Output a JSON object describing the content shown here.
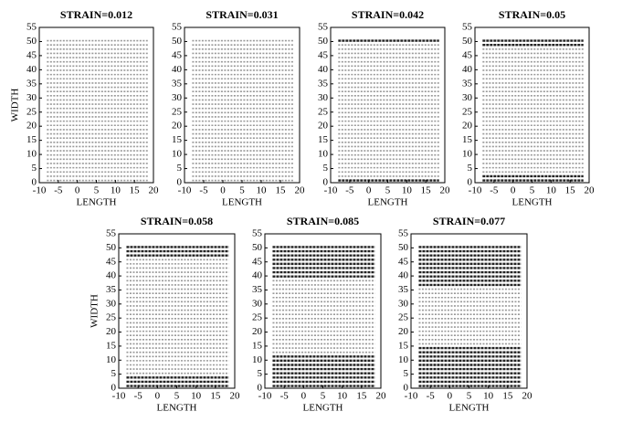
{
  "chart_data": [
    {
      "type": "lattice",
      "title": "STRAIN=0.012",
      "xlabel": "LENGTH",
      "ylabel": "WIDTH",
      "xlim": [
        -10,
        20
      ],
      "xticks": [
        -10,
        -5,
        0,
        5,
        10,
        15,
        20
      ],
      "ylim": [
        0,
        55
      ],
      "yticks": [
        0,
        5,
        10,
        15,
        20,
        25,
        30,
        35,
        40,
        45,
        50,
        55
      ]
    },
    {
      "type": "lattice",
      "title": "STRAIN=0.031",
      "xlabel": "LENGTH",
      "xlim": [
        -10,
        20
      ],
      "xticks": [
        -10,
        -5,
        0,
        5,
        10,
        15,
        20
      ],
      "ylim": [
        0,
        55
      ],
      "yticks": [
        0,
        5,
        10,
        15,
        20,
        25,
        30,
        35,
        40,
        45,
        50,
        55
      ]
    },
    {
      "type": "lattice",
      "title": "STRAIN=0.042",
      "xlabel": "LENGTH",
      "xlim": [
        -10,
        20
      ],
      "xticks": [
        -10,
        -5,
        0,
        5,
        10,
        15,
        20
      ],
      "ylim": [
        0,
        55
      ],
      "yticks": [
        0,
        5,
        10,
        15,
        20,
        25,
        30,
        35,
        40,
        45,
        50,
        55
      ]
    },
    {
      "type": "lattice",
      "title": "STRAIN=0.05",
      "xlabel": "LENGTH",
      "xlim": [
        -10,
        20
      ],
      "xticks": [
        -10,
        -5,
        0,
        5,
        10,
        15,
        20
      ],
      "ylim": [
        0,
        55
      ],
      "yticks": [
        0,
        5,
        10,
        15,
        20,
        25,
        30,
        35,
        40,
        45,
        50,
        55
      ]
    },
    {
      "type": "lattice",
      "title": "STRAIN=0.058",
      "xlabel": "LENGTH",
      "ylabel": "WIDTH",
      "xlim": [
        -10,
        20
      ],
      "xticks": [
        -10,
        -5,
        0,
        5,
        10,
        15,
        20
      ],
      "ylim": [
        0,
        55
      ],
      "yticks": [
        0,
        5,
        10,
        15,
        20,
        25,
        30,
        35,
        40,
        45,
        50,
        55
      ]
    },
    {
      "type": "lattice",
      "title": "STRAIN=0.085",
      "xlabel": "LENGTH",
      "xlim": [
        -10,
        20
      ],
      "xticks": [
        -10,
        -5,
        0,
        5,
        10,
        15,
        20
      ],
      "ylim": [
        0,
        55
      ],
      "yticks": [
        0,
        5,
        10,
        15,
        20,
        25,
        30,
        35,
        40,
        45,
        50,
        55
      ]
    },
    {
      "type": "lattice",
      "title": "STRAIN=0.077",
      "xlabel": "LENGTH",
      "xlim": [
        -10,
        20
      ],
      "xticks": [
        -10,
        -5,
        0,
        5,
        10,
        15,
        20
      ],
      "ylim": [
        0,
        55
      ],
      "yticks": [
        0,
        5,
        10,
        15,
        20,
        25,
        30,
        35,
        40,
        45,
        50,
        55
      ]
    }
  ]
}
